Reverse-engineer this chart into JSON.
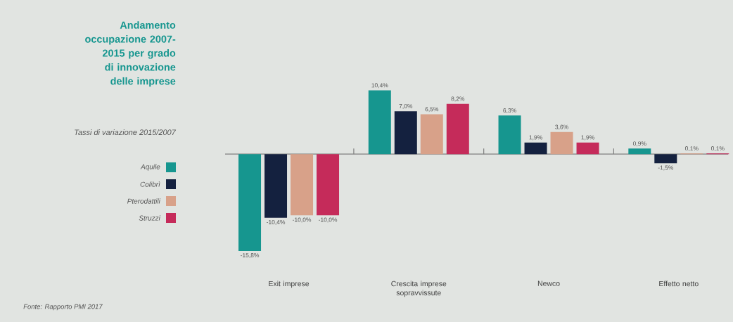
{
  "chart_data": {
    "type": "bar",
    "title": "Andamento occupazione 2007-2015 per grado di innovazione delle imprese",
    "subtitle": "Tassi di variazione 2015/2007",
    "categories": [
      "Exit imprese",
      "Crescita imprese sopravvissute",
      "Newco",
      "Effetto netto"
    ],
    "series": [
      {
        "name": "Aquile",
        "color": "#16968f",
        "values": [
          -15.8,
          10.4,
          6.3,
          0.9
        ],
        "value_labels": [
          "-15,8%",
          "10,4%",
          "6,3%",
          "0,9%"
        ]
      },
      {
        "name": "Colibrì",
        "color": "#14213f",
        "values": [
          -10.4,
          7.0,
          1.9,
          -1.5
        ],
        "value_labels": [
          "-10,4%",
          "7,0%",
          "1,9%",
          "-1,5%"
        ]
      },
      {
        "name": "Pterodattili",
        "color": "#d8a189",
        "values": [
          -10.0,
          6.5,
          3.6,
          0.1
        ],
        "value_labels": [
          "-10,0%",
          "6,5%",
          "3,6%",
          "0,1%"
        ]
      },
      {
        "name": "Struzzi",
        "color": "#c52b5a",
        "values": [
          -10.0,
          8.2,
          1.9,
          0.1
        ],
        "value_labels": [
          "-10,0%",
          "8,2%",
          "1,9%",
          "0,1%"
        ]
      }
    ],
    "legend": "left",
    "annotations": [
      "Fonte: Rapporto PMI 2017"
    ]
  }
}
